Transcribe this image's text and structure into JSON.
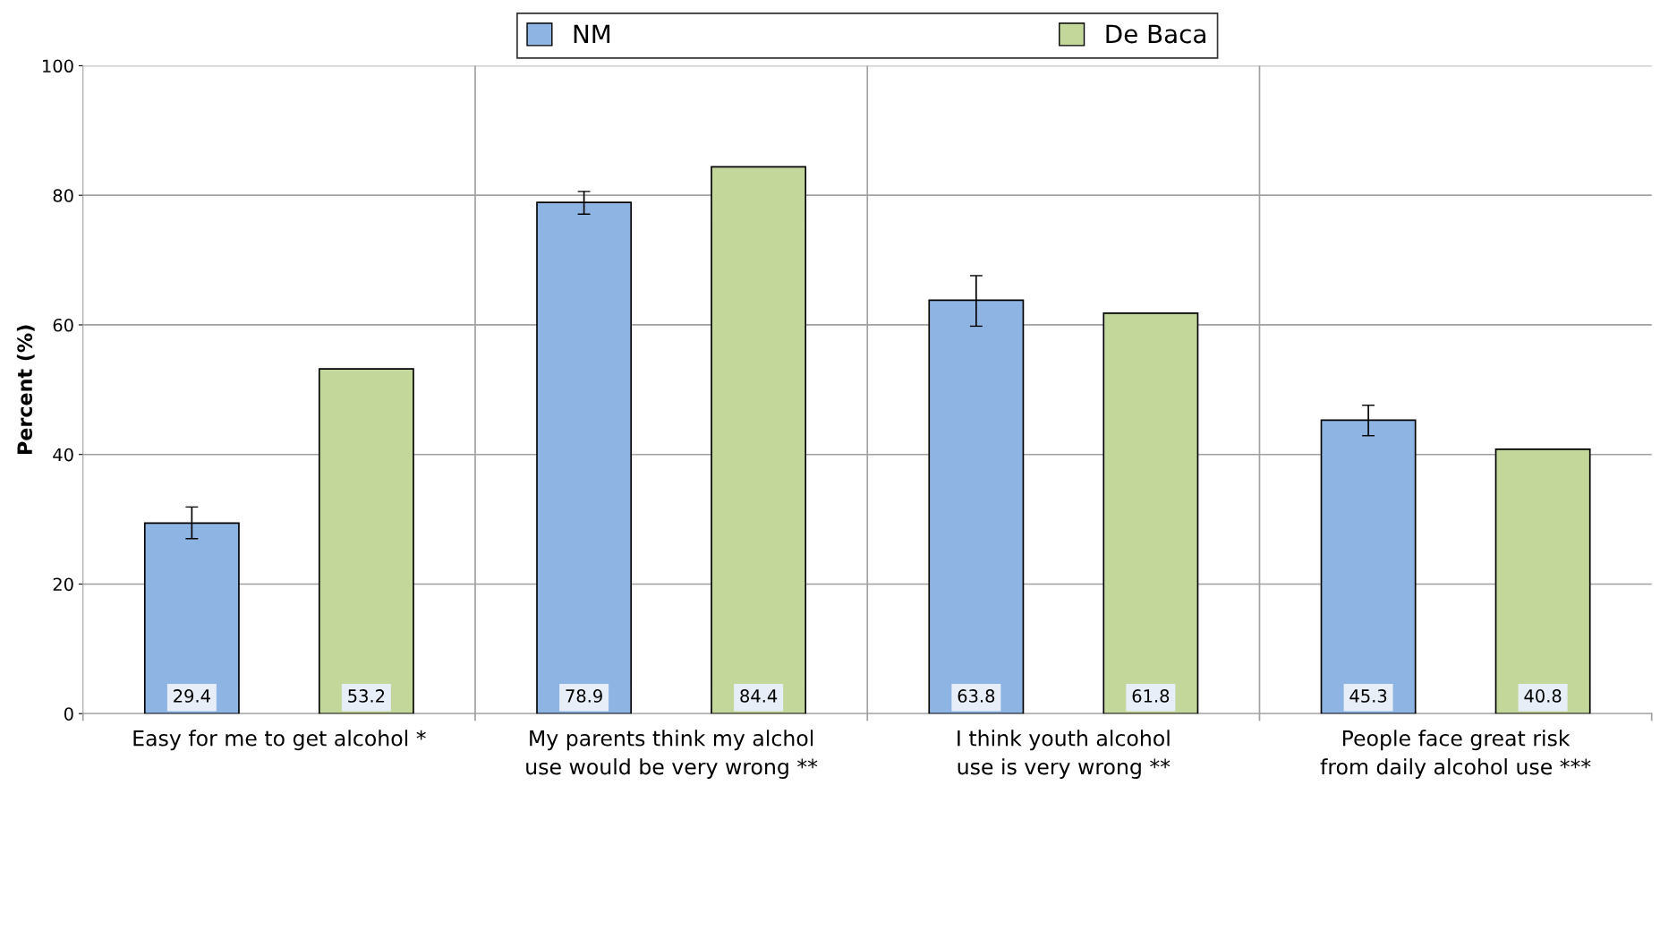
{
  "chart_data": {
    "type": "bar",
    "ylabel": "Percent (%)",
    "categories": [
      "Easy for me to get alcohol *",
      "My parents think my alchol use would be very wrong **",
      "I think youth alcohol use is very wrong **",
      "People face great risk from daily alcohol use ***"
    ],
    "series": [
      {
        "name": "NM",
        "color": "#8db4e2",
        "values": [
          29.4,
          78.9,
          63.8,
          45.3
        ],
        "errors": [
          [
            27.0,
            31.9
          ],
          [
            77.1,
            80.6
          ],
          [
            59.8,
            67.6
          ],
          [
            42.9,
            47.6
          ]
        ]
      },
      {
        "name": "De Baca",
        "color": "#c4d79b",
        "values": [
          53.2,
          84.4,
          61.8,
          40.8
        ]
      }
    ],
    "ylim": [
      0,
      100
    ],
    "yticks": [
      0,
      20,
      40,
      60,
      80,
      100
    ],
    "grid": true,
    "legend": "top",
    "data_labels": true
  }
}
